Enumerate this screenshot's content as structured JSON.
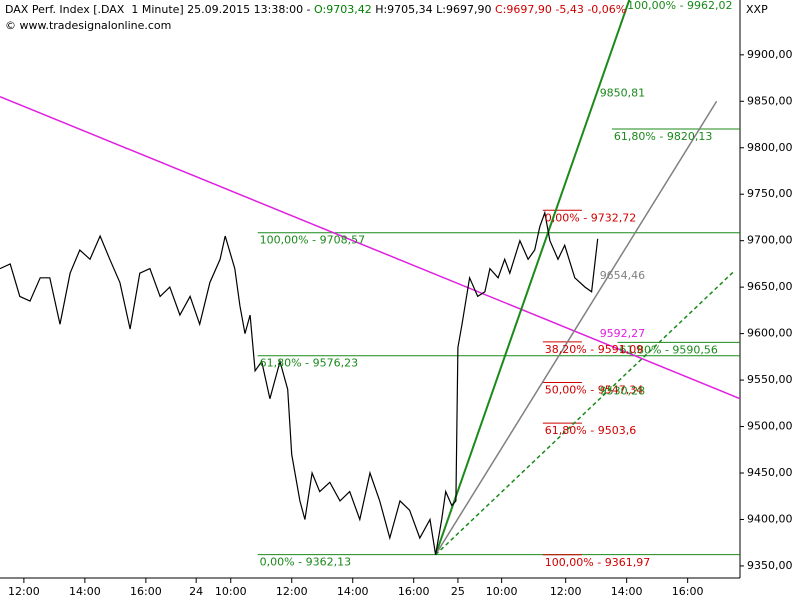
{
  "chart_data": {
    "type": "line",
    "header": [
      {
        "text": "DAX Perf. Index [.DAX  1 Minute] 25.09.2015 13:38:00 - ",
        "color": "#000000"
      },
      {
        "text": "O:9703,42",
        "color": "#008000"
      },
      {
        "text": " H:9705,34 L:9697,90 ",
        "color": "#000000"
      },
      {
        "text": "C:9697,90 -5,43 -0,06%",
        "color": "#d00000"
      }
    ],
    "source": "© www.tradesignalonline.com",
    "y_axis_label": "XXP",
    "color": "#000000",
    "x": [
      0,
      20,
      39,
      59,
      79,
      98,
      118,
      138,
      157,
      177,
      197,
      216,
      236,
      256,
      275,
      295,
      315,
      334,
      354,
      374,
      393,
      413,
      433,
      443,
      462,
      472,
      482,
      492,
      502,
      515,
      531,
      551,
      566,
      574,
      590,
      600,
      614,
      629,
      649,
      669,
      688,
      708,
      728,
      747,
      767,
      787,
      806,
      826,
      846,
      857,
      869,
      877,
      889,
      897,
      901,
      909,
      924,
      940,
      954,
      964,
      980,
      993,
      1003,
      1023,
      1039,
      1052,
      1062,
      1072,
      1082,
      1098,
      1111,
      1131,
      1151,
      1164,
      1176
    ],
    "values": [
      9670,
      9675,
      9640,
      9635,
      9660,
      9660,
      9610,
      9665,
      9690,
      9680,
      9705,
      9680,
      9655,
      9605,
      9665,
      9670,
      9640,
      9650,
      9620,
      9640,
      9610,
      9655,
      9680,
      9705,
      9670,
      9630,
      9600,
      9620,
      9560,
      9570,
      9530,
      9570,
      9540,
      9470,
      9420,
      9400,
      9450,
      9430,
      9440,
      9420,
      9430,
      9400,
      9450,
      9420,
      9380,
      9420,
      9410,
      9380,
      9400,
      9362,
      9400,
      9430,
      9415,
      9420,
      9585,
      9610,
      9660,
      9640,
      9645,
      9670,
      9660,
      9680,
      9665,
      9700,
      9680,
      9690,
      9715,
      9730,
      9700,
      9680,
      9695,
      9660,
      9650,
      9645,
      9702
    ],
    "xlim": [
      0,
      1456
    ],
    "xticks": [
      {
        "value": 47,
        "label": "12:00"
      },
      {
        "value": 167,
        "label": "14:00"
      },
      {
        "value": 287,
        "label": "16:00"
      },
      {
        "value": 386,
        "label": "24"
      },
      {
        "value": 454,
        "label": "10:00"
      },
      {
        "value": 574,
        "label": "12:00"
      },
      {
        "value": 694,
        "label": "14:00"
      },
      {
        "value": 814,
        "label": "16:00"
      },
      {
        "value": 901,
        "label": "25"
      },
      {
        "value": 987,
        "label": "10:00"
      },
      {
        "value": 1113,
        "label": "12:00"
      },
      {
        "value": 1233,
        "label": "14:00"
      },
      {
        "value": 1353,
        "label": "16:00"
      }
    ],
    "ylim": [
      9337,
      9959
    ],
    "yticks": [
      {
        "value": 9350,
        "label": "9350,00"
      },
      {
        "value": 9400,
        "label": "9400,00"
      },
      {
        "value": 9450,
        "label": "9450,00"
      },
      {
        "value": 9500,
        "label": "9500,00"
      },
      {
        "value": 9550,
        "label": "9550,00"
      },
      {
        "value": 9600,
        "label": "9600,00"
      },
      {
        "value": 9650,
        "label": "9650,00"
      },
      {
        "value": 9700,
        "label": "9700,00"
      },
      {
        "value": 9750,
        "label": "9750,00"
      },
      {
        "value": 9800,
        "label": "9800,00"
      },
      {
        "value": 9850,
        "label": "9850,00"
      },
      {
        "value": 9900,
        "label": "9900,00"
      }
    ],
    "levels": [
      {
        "value": 9962.02,
        "label": "100,00% - 9962,02",
        "color": "#1a8a1a",
        "from": 1230,
        "to": 1456
      },
      {
        "value": 9820.13,
        "label": "61,80% - 9820,13",
        "color": "#1a8a1a",
        "from": 1204,
        "to": 1456
      },
      {
        "value": 9708.57,
        "label": "100,00% - 9708,57",
        "color": "#1a8a1a",
        "from": 507,
        "to": 1456
      },
      {
        "value": 9576.23,
        "label": "61,80% - 9576,23",
        "color": "#1a8a1a",
        "from": 507,
        "to": 1456
      },
      {
        "value": 9362.13,
        "label": "0,00% - 9362,13",
        "color": "#1a8a1a",
        "from": 507,
        "to": 1456
      },
      {
        "value": 9590.56,
        "label": "61,80% - 9590,56",
        "color": "#1a8a1a",
        "from": 1215,
        "to": 1456
      },
      {
        "value": 9732.72,
        "label": "0,00% - 9732,72",
        "color": "#d00000",
        "from": 1068,
        "to": 1145
      },
      {
        "value": 9591.09,
        "label": "38,20% - 9591,09",
        "color": "#d00000",
        "from": 1068,
        "to": 1145
      },
      {
        "value": 9547.34,
        "label": "50,00% - 9547,34",
        "color": "#d00000",
        "from": 1068,
        "to": 1145
      },
      {
        "value": 9503.6,
        "label": "61,80% - 9503,6",
        "color": "#d00000",
        "from": 1068,
        "to": 1145
      },
      {
        "value": 9361.97,
        "label": "100,00% - 9361,97",
        "color": "#d00000",
        "from": 1068,
        "to": 1145
      }
    ],
    "trendlines": [
      {
        "x": [
          0,
          1456
        ],
        "y": [
          9855,
          9530
        ],
        "color": "#e020e0",
        "dashed": false,
        "label": "9592,27",
        "label_value": 9592.27,
        "label_x": 1176
      },
      {
        "x": [
          857,
          1240
        ],
        "y": [
          9362,
          9962
        ],
        "color": "#1a8a1a",
        "dashed": false,
        "label": "9850,81",
        "label_value": 9850.81,
        "label_x": 1176
      },
      {
        "x": [
          857,
          1410
        ],
        "y": [
          9362,
          9850
        ],
        "color": "#808080",
        "dashed": false,
        "label": "9654,46",
        "label_value": 9654.46,
        "label_x": 1176
      },
      {
        "x": [
          857,
          1446
        ],
        "y": [
          9362,
          9668
        ],
        "color": "#1a8a1a",
        "dashed": true,
        "label": "9530,28",
        "label_value": 9530.28,
        "label_x": 1176
      }
    ]
  }
}
